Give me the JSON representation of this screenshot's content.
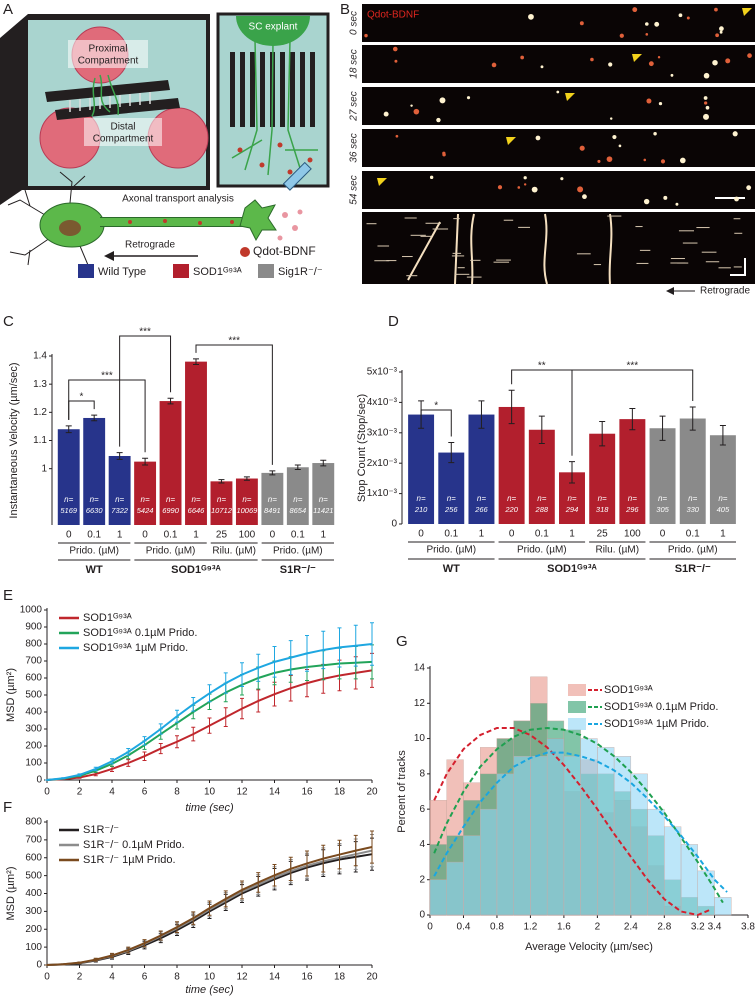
{
  "panel_labels": [
    "A",
    "B",
    "C",
    "D",
    "E",
    "F",
    "G"
  ],
  "panel_a": {
    "proximal_label": [
      "Proximal",
      "Compartment"
    ],
    "distal_label": [
      "Distal",
      "Compartment"
    ],
    "explant_label": "SC explant",
    "analysis_label": "Axonal transport analysis",
    "direction_label": "Retrograde",
    "qdot_label": "Qdot-BDNF"
  },
  "legend": [
    {
      "name": "Wild Type",
      "color": "#27348b"
    },
    {
      "name": "SOD1ᴳ⁹³ᴬ",
      "color": "#b21f2d"
    },
    {
      "name": "Sig1R⁻/⁻",
      "color": "#8a8a8a"
    }
  ],
  "panel_b": {
    "stain_label": "Qdot-BDNF",
    "frame_labels": [
      "0 sec",
      "18 sec",
      "27 sec",
      "36 sec",
      "54 sec"
    ],
    "direction_label": "Retrograde"
  },
  "chart_data": [
    {
      "type": "bar",
      "ylabel": "Instantaneous Velocity (µm/sec)",
      "ylim": [
        0.8,
        1.4
      ],
      "yticks": [
        1,
        1.1,
        1.2,
        1.3,
        1.4
      ],
      "count_prefix": "n=",
      "significance": [
        "*",
        "***",
        "***",
        "***"
      ],
      "genotypes": [
        {
          "name": "WT",
          "color": "#27348b",
          "treatments": [
            {
              "name": "Prido. (µM)",
              "categories": [
                "0",
                "0.1",
                "1"
              ],
              "values": [
                1.14,
                1.18,
                1.045
              ],
              "errors": [
                0.012,
                0.01,
                0.012
              ],
              "counts": [
                5169,
                6630,
                7322
              ]
            }
          ]
        },
        {
          "name": "SOD1ᴳ⁹³ᴬ",
          "color": "#b21f2d",
          "treatments": [
            {
              "name": "Prido. (µM)",
              "categories": [
                "0",
                "0.1",
                "1"
              ],
              "values": [
                1.025,
                1.24,
                1.38
              ],
              "errors": [
                0.012,
                0.01,
                0.01
              ],
              "counts": [
                5424,
                6990,
                6646
              ]
            },
            {
              "name": "Rilu. (µM)",
              "categories": [
                "25",
                "100"
              ],
              "values": [
                0.955,
                0.965
              ],
              "errors": [
                0.006,
                0.006
              ],
              "counts": [
                10712,
                10069
              ]
            }
          ]
        },
        {
          "name": "S1R⁻/⁻",
          "color": "#8a8a8a",
          "treatments": [
            {
              "name": "Prido. (µM)",
              "categories": [
                "0",
                "0.1",
                "1"
              ],
              "values": [
                0.985,
                1.005,
                1.02
              ],
              "errors": [
                0.007,
                0.008,
                0.01
              ],
              "counts": [
                8491,
                8654,
                11421
              ]
            }
          ]
        }
      ]
    },
    {
      "type": "bar",
      "ylabel": "Stop Count (Stop/sec)",
      "ylim": [
        0,
        0.005
      ],
      "yticks": [
        0,
        {
          "value": 0.001,
          "label": "1x10⁻³"
        },
        {
          "value": 0.002,
          "label": "2x10⁻³"
        },
        {
          "value": 0.003,
          "label": "3x10⁻³"
        },
        {
          "value": 0.004,
          "label": "4x10⁻³"
        },
        {
          "value": 0.005,
          "label": "5x10⁻³"
        }
      ],
      "count_prefix": "n=",
      "significance": [
        "*",
        "**",
        "***"
      ],
      "genotypes": [
        {
          "name": "WT",
          "color": "#27348b",
          "treatments": [
            {
              "name": "Prido. (µM)",
              "categories": [
                "0",
                "0.1",
                "1"
              ],
              "values": [
                0.0036,
                0.00235,
                0.0036
              ],
              "errors": [
                0.00045,
                0.00033,
                0.00045
              ],
              "counts": [
                210,
                256,
                266
              ]
            }
          ]
        },
        {
          "name": "SOD1ᴳ⁹³ᴬ",
          "color": "#b21f2d",
          "treatments": [
            {
              "name": "Prido. (µM)",
              "categories": [
                "0",
                "0.1",
                "1"
              ],
              "values": [
                0.00385,
                0.0031,
                0.0017
              ],
              "errors": [
                0.00055,
                0.00045,
                0.00035
              ],
              "counts": [
                220,
                288,
                294
              ]
            },
            {
              "name": "Rilu. (µM)",
              "categories": [
                "25",
                "100"
              ],
              "values": [
                0.00297,
                0.00345
              ],
              "errors": [
                0.0004,
                0.00035
              ],
              "counts": [
                318,
                296
              ]
            }
          ]
        },
        {
          "name": "S1R⁻/⁻",
          "color": "#8a8a8a",
          "treatments": [
            {
              "name": "Prido. (µM)",
              "categories": [
                "0",
                "0.1",
                "1"
              ],
              "values": [
                0.00315,
                0.00347,
                0.00292
              ],
              "errors": [
                0.0004,
                0.00038,
                0.00032
              ],
              "counts": [
                305,
                330,
                405
              ]
            }
          ]
        }
      ]
    },
    {
      "type": "line",
      "xlabel": "time (sec)",
      "ylabel": "MSD (µm²)",
      "xlim": [
        0,
        20
      ],
      "xticks": [
        0,
        2,
        4,
        6,
        8,
        10,
        12,
        14,
        16,
        18,
        20
      ],
      "ylim": [
        0,
        1000
      ],
      "yticks": [
        0,
        100,
        200,
        300,
        400,
        500,
        600,
        700,
        800,
        900,
        1000
      ],
      "x": [
        0,
        1,
        2,
        3,
        4,
        5,
        6,
        7,
        8,
        9,
        10,
        11,
        12,
        13,
        14,
        15,
        16,
        17,
        18,
        19,
        20
      ],
      "series": [
        {
          "name": "SOD1ᴳ⁹³ᴬ",
          "color": "#c0272d",
          "values": [
            0,
            5,
            15,
            35,
            65,
            100,
            140,
            185,
            225,
            270,
            320,
            370,
            420,
            465,
            505,
            540,
            570,
            595,
            615,
            630,
            645
          ],
          "errors": [
            0,
            2,
            5,
            10,
            15,
            20,
            25,
            30,
            35,
            40,
            45,
            55,
            60,
            65,
            70,
            75,
            80,
            85,
            90,
            95,
            100
          ]
        },
        {
          "name": "SOD1ᴳ⁹³ᴬ 0.1µM Prido.",
          "color": "#22a45a",
          "values": [
            0,
            8,
            25,
            55,
            95,
            145,
            205,
            270,
            335,
            400,
            460,
            515,
            560,
            600,
            630,
            650,
            665,
            675,
            685,
            690,
            695
          ],
          "errors": [
            0,
            2,
            5,
            10,
            15,
            20,
            25,
            30,
            35,
            40,
            45,
            55,
            60,
            65,
            70,
            75,
            80,
            85,
            90,
            95,
            100
          ]
        },
        {
          "name": "SOD1ᴳ⁹³ᴬ 1µM Prido.",
          "color": "#1ea7e1",
          "values": [
            0,
            10,
            30,
            65,
            110,
            165,
            230,
            300,
            375,
            445,
            510,
            570,
            620,
            660,
            695,
            720,
            745,
            765,
            780,
            790,
            800
          ],
          "errors": [
            0,
            3,
            6,
            10,
            15,
            20,
            25,
            30,
            35,
            40,
            50,
            60,
            70,
            80,
            90,
            100,
            105,
            110,
            115,
            120,
            125
          ]
        }
      ]
    },
    {
      "type": "line",
      "xlabel": "time (sec)",
      "ylabel": "MSD (µm²)",
      "xlim": [
        0,
        20
      ],
      "xticks": [
        0,
        2,
        4,
        6,
        8,
        10,
        12,
        14,
        16,
        18,
        20
      ],
      "ylim": [
        0,
        800
      ],
      "yticks": [
        0,
        100,
        200,
        300,
        400,
        500,
        600,
        700,
        800
      ],
      "x": [
        0,
        1,
        2,
        3,
        4,
        5,
        6,
        7,
        8,
        9,
        10,
        11,
        12,
        13,
        14,
        15,
        16,
        17,
        18,
        19,
        20
      ],
      "series": [
        {
          "name": "S1R⁻/⁻",
          "color": "#231f20",
          "values": [
            0,
            3,
            10,
            25,
            45,
            75,
            110,
            150,
            195,
            245,
            300,
            350,
            400,
            440,
            480,
            515,
            545,
            570,
            590,
            605,
            620
          ],
          "errors": [
            0,
            2,
            4,
            8,
            12,
            16,
            20,
            25,
            30,
            35,
            40,
            45,
            50,
            55,
            60,
            65,
            70,
            75,
            80,
            85,
            90
          ]
        },
        {
          "name": "S1R⁻/⁻ 0.1µM Prido.",
          "color": "#8c8c8c",
          "values": [
            0,
            4,
            12,
            28,
            50,
            80,
            118,
            160,
            205,
            255,
            310,
            360,
            410,
            450,
            490,
            525,
            555,
            580,
            600,
            620,
            640
          ],
          "errors": [
            0,
            2,
            4,
            8,
            12,
            16,
            20,
            25,
            30,
            35,
            40,
            45,
            50,
            55,
            60,
            65,
            70,
            75,
            80,
            85,
            90
          ]
        },
        {
          "name": "S1R⁻/⁻ 1µM Prido.",
          "color": "#7a4a1e",
          "values": [
            0,
            4,
            13,
            30,
            53,
            84,
            122,
            165,
            212,
            262,
            318,
            370,
            420,
            462,
            502,
            538,
            568,
            595,
            618,
            640,
            660
          ],
          "errors": [
            0,
            2,
            4,
            8,
            12,
            16,
            20,
            25,
            30,
            35,
            40,
            45,
            50,
            55,
            60,
            65,
            70,
            75,
            80,
            85,
            90
          ]
        }
      ]
    },
    {
      "type": "histogram",
      "xlabel": "Average Velocity (µm/sec)",
      "ylabel": "Percent of tracks",
      "xlim": [
        0,
        3.8
      ],
      "xticks": [
        0,
        0.4,
        0.8,
        1.2,
        1.6,
        2,
        2.4,
        2.8,
        3.2,
        3.4,
        3.8
      ],
      "ylim": [
        0,
        14
      ],
      "yticks": [
        0,
        2,
        4,
        6,
        8,
        10,
        12,
        14
      ],
      "bins": [
        0,
        0.2,
        0.4,
        0.6,
        0.8,
        1,
        1.2,
        1.4,
        1.6,
        1.8,
        2,
        2.2,
        2.4,
        2.6,
        2.8,
        3,
        3.2,
        3.4,
        3.6
      ],
      "series": [
        {
          "name": "SOD1ᴳ⁹³ᴬ",
          "color": "#e8968a",
          "values": [
            6.5,
            8.8,
            7.5,
            9.5,
            10,
            11,
            13.5,
            10,
            7,
            8.8,
            5.8,
            6.5,
            5,
            2.8,
            0.5,
            0,
            0,
            0
          ],
          "fit": {
            "color": "#d4202e",
            "x": [
              0.05,
              0.2,
              0.4,
              0.6,
              0.8,
              1,
              1.2,
              1.4,
              1.6,
              1.8,
              2,
              2.2,
              2.4,
              2.6,
              2.8,
              3,
              3.2,
              3.35
            ],
            "values": [
              6.5,
              8,
              9.4,
              10.2,
              10.6,
              10.6,
              10.2,
              9.5,
              8.5,
              7.3,
              6,
              4.6,
              3.3,
              2,
              0.9,
              0.2,
              0,
              0.3
            ]
          }
        },
        {
          "name": "SOD1ᴳ⁹³ᴬ 0.1µM Prido.",
          "color": "#2e9e6e",
          "values": [
            4,
            4.5,
            6.5,
            8,
            10,
            11,
            12,
            11,
            10.5,
            8,
            8,
            7,
            6,
            4.5,
            2,
            1,
            0.5,
            0
          ],
          "fit": {
            "color": "#1fa050",
            "x": [
              0.05,
              0.2,
              0.4,
              0.6,
              0.8,
              1,
              1.2,
              1.4,
              1.6,
              1.8,
              2,
              2.2,
              2.4,
              2.6,
              2.8,
              3,
              3.2,
              3.4,
              3.5
            ],
            "values": [
              3.5,
              5.2,
              7,
              8.4,
              9.4,
              10.1,
              10.5,
              10.6,
              10.5,
              10.2,
              9.7,
              9,
              8.1,
              7,
              5.8,
              4.4,
              3,
              1.5,
              0.7
            ]
          }
        },
        {
          "name": "SOD1ᴳ⁹³ᴬ 1µM Prido.",
          "color": "#8fd6f5",
          "values": [
            2,
            3,
            4.5,
            6,
            8,
            9,
            9,
            10,
            9,
            10,
            9.5,
            9,
            8,
            6,
            5,
            4,
            2.5,
            1
          ],
          "fit": {
            "color": "#1aa6e0",
            "x": [
              0.05,
              0.2,
              0.4,
              0.6,
              0.8,
              1,
              1.2,
              1.4,
              1.6,
              1.8,
              2,
              2.2,
              2.4,
              2.6,
              2.8,
              3,
              3.2,
              3.4,
              3.55
            ],
            "values": [
              2.2,
              3.5,
              5,
              6.4,
              7.5,
              8.4,
              8.9,
              9.2,
              9.2,
              9,
              8.7,
              8.2,
              7.5,
              6.6,
              5.6,
              4.5,
              3.3,
              2,
              1.3
            ]
          }
        }
      ]
    }
  ]
}
